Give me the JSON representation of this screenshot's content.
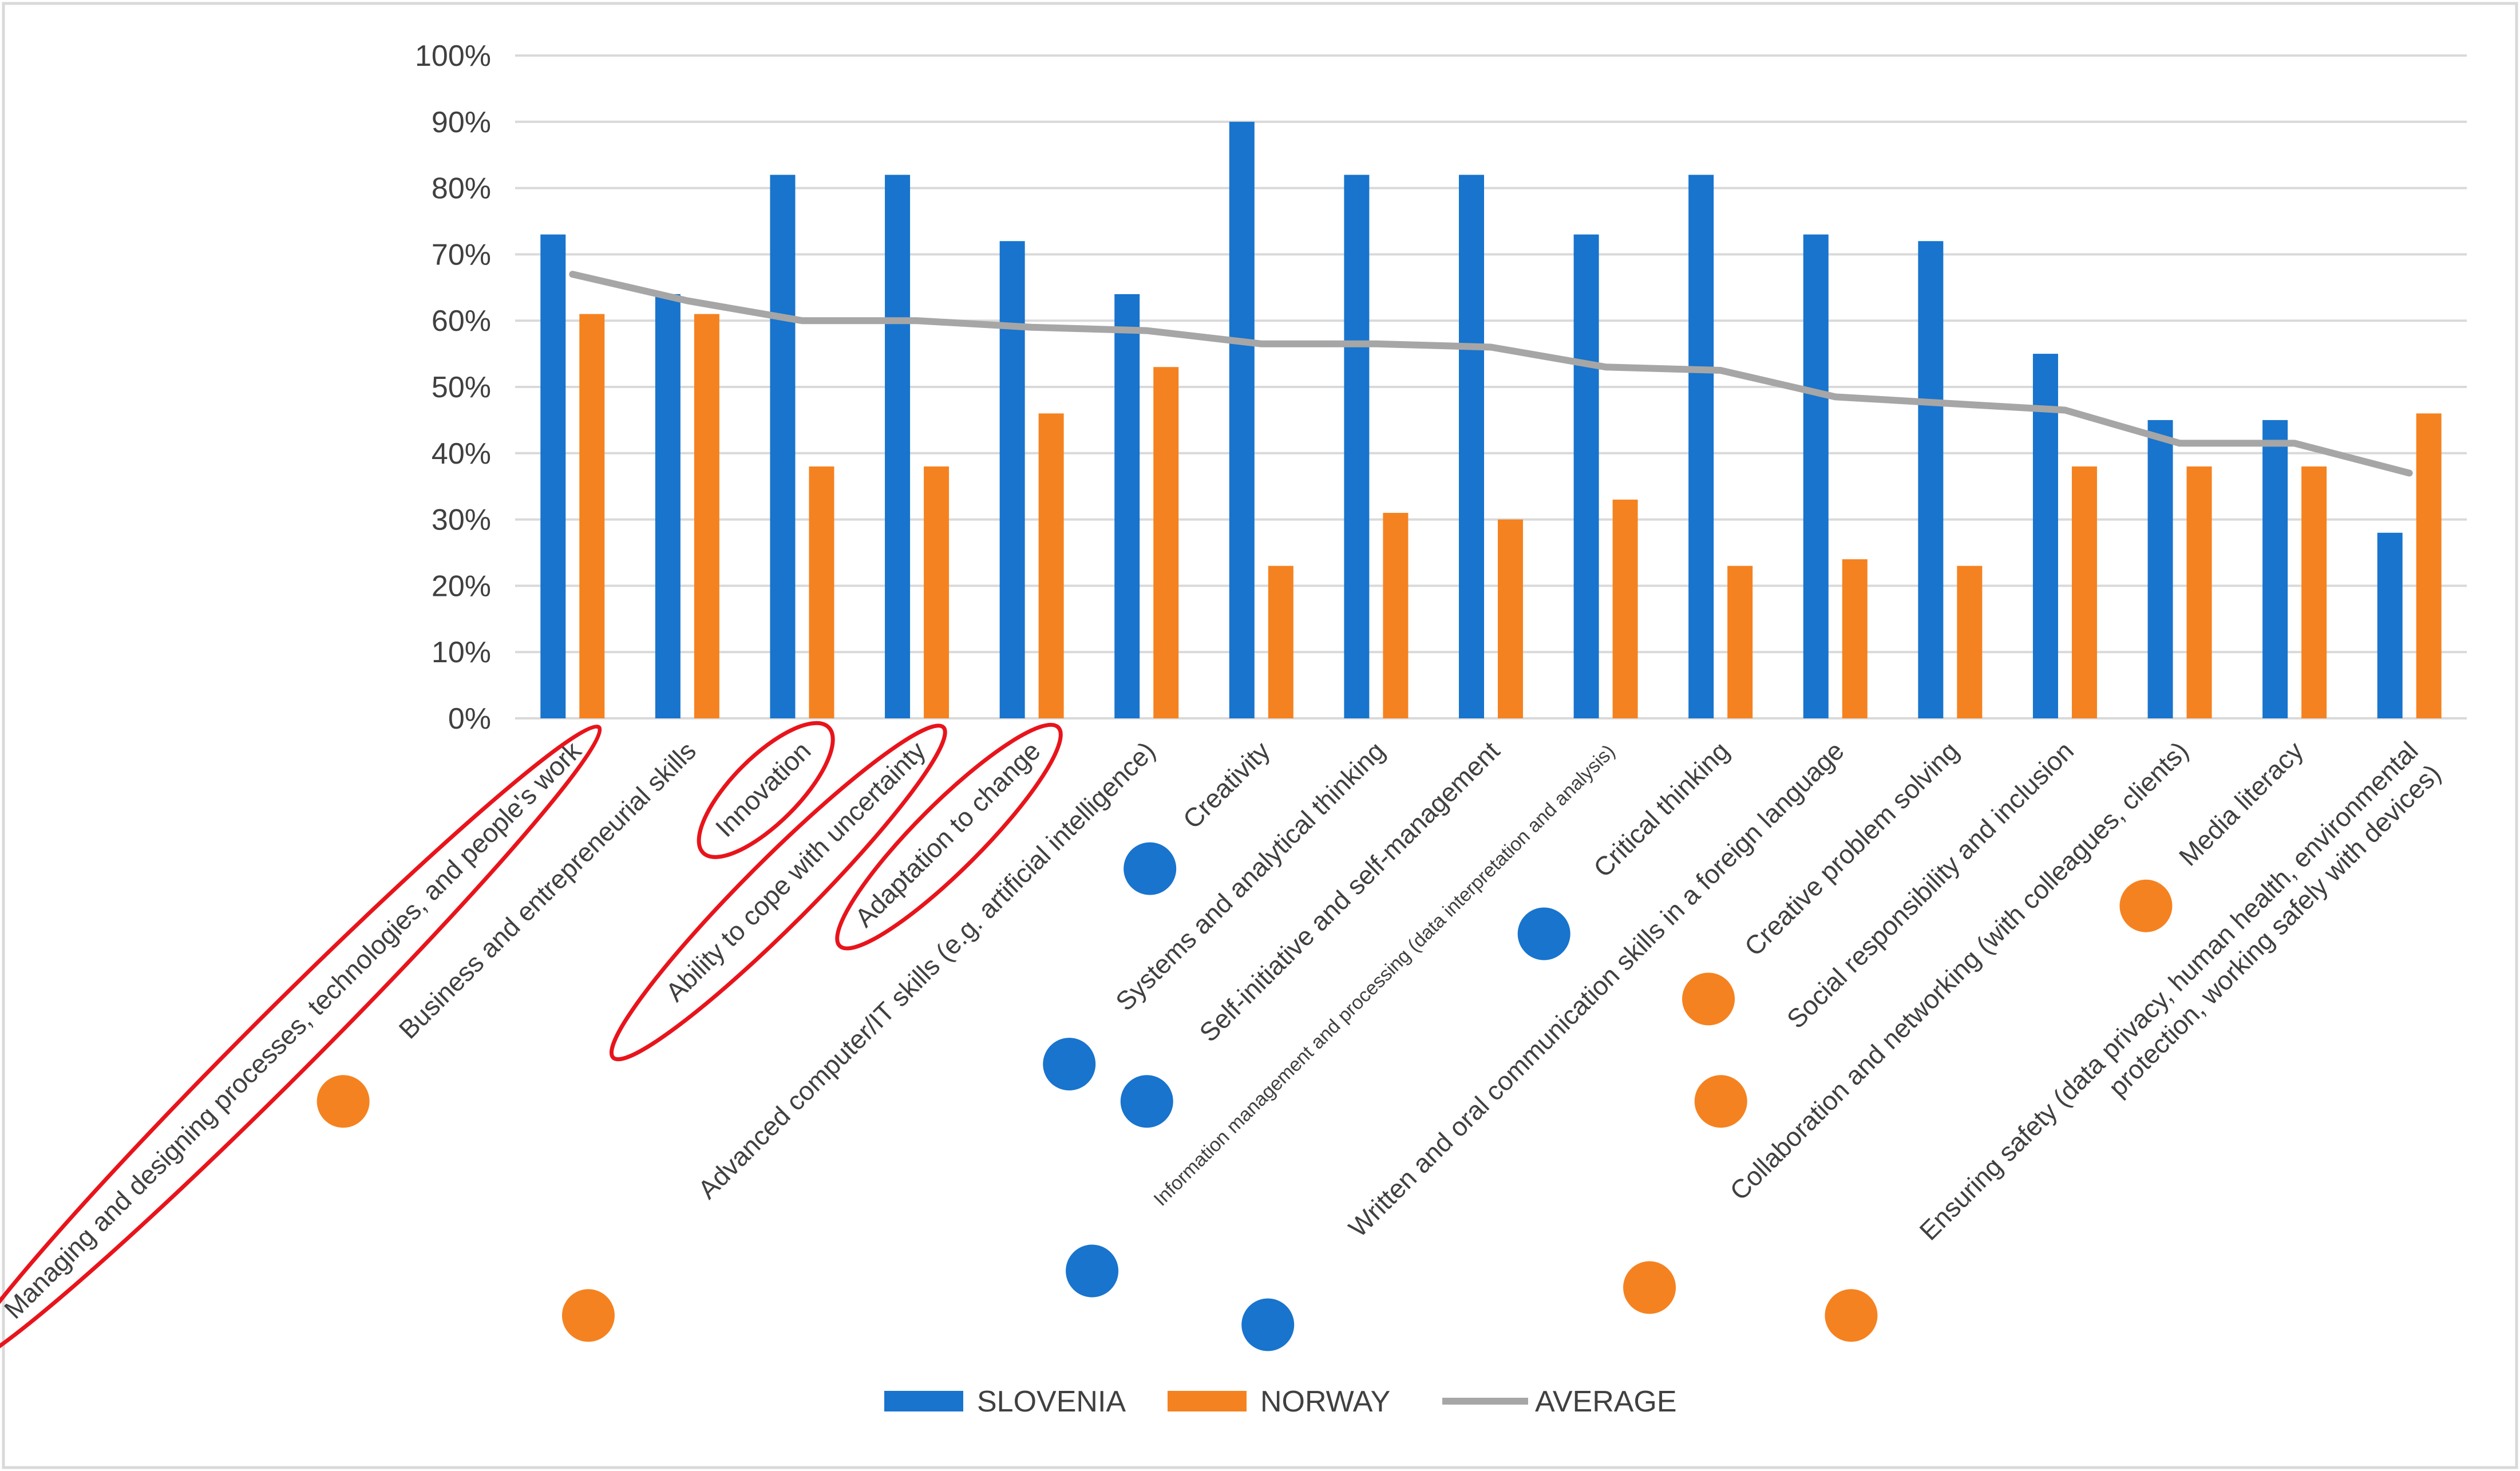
{
  "chart_data": {
    "type": "bar",
    "ylim": [
      0,
      100
    ],
    "y_ticks": [
      "0%",
      "10%",
      "20%",
      "30%",
      "40%",
      "50%",
      "60%",
      "70%",
      "80%",
      "90%",
      "100%"
    ],
    "grid": true,
    "legend_position": "bottom-center",
    "categories": [
      [
        "Managing and designing processes, technologies, and people's work"
      ],
      [
        "Business and entrepreneurial skills"
      ],
      [
        "Innovation"
      ],
      [
        "Ability to cope with uncertainty"
      ],
      [
        "Adaptation to change"
      ],
      [
        "Advanced computer/IT skills (e.g. artificial intelligence)"
      ],
      [
        "Creativity"
      ],
      [
        "Systems and analytical thinking"
      ],
      [
        "Self-initiative and self-management"
      ],
      [
        "Information management and processing (data interpretation and analysis)"
      ],
      [
        "Critical thinking"
      ],
      [
        "Written and oral communication skills in a foreign language"
      ],
      [
        "Creative problem solving"
      ],
      [
        "Social responsibility and inclusion"
      ],
      [
        "Collaboration and networking (with colleagues, clients)"
      ],
      [
        "Media literacy"
      ],
      [
        "Ensuring safety (data privacy, human health, environmental",
        "protection, working safely with devices)"
      ]
    ],
    "series": [
      {
        "name": "SLOVENIA",
        "type": "bar",
        "color": "#1874CD",
        "values": [
          73,
          64,
          82,
          82,
          72,
          64,
          90,
          82,
          82,
          73,
          82,
          73,
          72,
          55,
          45,
          45,
          28
        ]
      },
      {
        "name": "NORWAY",
        "type": "bar",
        "color": "#F58220",
        "values": [
          61,
          61,
          38,
          38,
          46,
          53,
          23,
          31,
          30,
          33,
          23,
          24,
          23,
          38,
          38,
          38,
          46
        ]
      },
      {
        "name": "AVERAGE",
        "type": "line",
        "color": "#A6A6A6",
        "values": [
          67,
          63,
          60,
          60,
          59,
          58.5,
          56.5,
          56.5,
          56,
          53,
          52.5,
          48.5,
          47.5,
          46.5,
          41.5,
          41.5,
          37
        ]
      }
    ],
    "highlighted_categories": [
      0,
      2,
      3,
      4
    ],
    "highlight_color": "#E8141B",
    "marker_dots": [
      {
        "category": 1,
        "color": "#F58220"
      },
      {
        "category": 5,
        "color": "#F58220"
      },
      {
        "category": 6,
        "color": "#1874CD"
      },
      {
        "category": 7,
        "color": "#1874CD"
      },
      {
        "category": 8,
        "color": "#1874CD"
      },
      {
        "category": 9,
        "color": "#1874CD"
      },
      {
        "category": 10,
        "color": "#1874CD"
      },
      {
        "category": 11,
        "color": "#1874CD"
      },
      {
        "category": 12,
        "color": "#F58220"
      },
      {
        "category": 13,
        "color": "#F58220"
      },
      {
        "category": 14,
        "color": "#F58220"
      },
      {
        "category": 15,
        "color": "#F58220"
      },
      {
        "category": 16,
        "color": "#F58220"
      }
    ]
  }
}
